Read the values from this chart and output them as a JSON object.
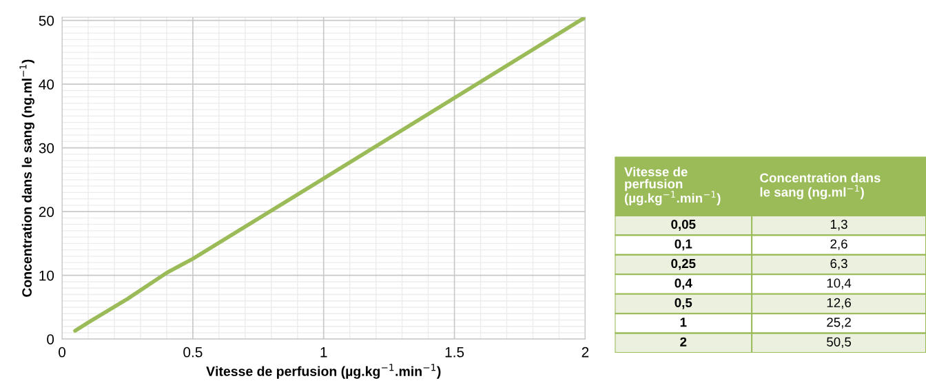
{
  "chart_data": [
    {
      "type": "line",
      "xlabel": "Vitesse de perfusion (µg.kg$^{−1}$.min$^{−1}$)",
      "ylabel": "Concentration dans le sang (ng.ml$^{−1}$)",
      "x": [
        0.05,
        0.1,
        0.25,
        0.4,
        0.5,
        1,
        2
      ],
      "series": [
        {
          "color": "#9bbb59",
          "values": [
            1.3,
            2.6,
            6.3,
            10.4,
            12.6,
            25.2,
            50.5
          ]
        }
      ],
      "xlim": [
        0,
        2
      ],
      "ylim": [
        0,
        50.5
      ],
      "xticks": [
        0,
        {
          "value": 0.1,
          "label": null
        },
        {
          "value": 0.2,
          "label": null
        },
        {
          "value": 0.3,
          "label": null
        },
        {
          "value": 0.4,
          "label": null
        },
        0.5,
        {
          "value": 0.6,
          "label": null
        },
        {
          "value": 0.7,
          "label": null
        },
        {
          "value": 0.8,
          "label": null
        },
        {
          "value": 0.9,
          "label": null
        },
        1,
        {
          "value": 1.1,
          "label": null
        },
        {
          "value": 1.2,
          "label": null
        },
        {
          "value": 1.3,
          "label": null
        },
        {
          "value": 1.4,
          "label": null
        },
        1.5,
        {
          "value": 1.6,
          "label": null
        },
        {
          "value": 1.7,
          "label": null
        },
        {
          "value": 1.8,
          "label": null
        },
        {
          "value": 1.9,
          "label": null
        },
        2
      ],
      "yticks": [
        0,
        {
          "value": 1,
          "label": null
        },
        {
          "value": 2,
          "label": null
        },
        {
          "value": 3,
          "label": null
        },
        {
          "value": 4,
          "label": null
        },
        {
          "value": 5,
          "label": null
        },
        {
          "value": 6,
          "label": null
        },
        {
          "value": 7,
          "label": null
        },
        {
          "value": 8,
          "label": null
        },
        {
          "value": 9,
          "label": null
        },
        10,
        {
          "value": 11,
          "label": null
        },
        {
          "value": 12,
          "label": null
        },
        {
          "value": 13,
          "label": null
        },
        {
          "value": 14,
          "label": null
        },
        {
          "value": 15,
          "label": null
        },
        {
          "value": 16,
          "label": null
        },
        {
          "value": 17,
          "label": null
        },
        {
          "value": 18,
          "label": null
        },
        {
          "value": 19,
          "label": null
        },
        20,
        {
          "value": 21,
          "label": null
        },
        {
          "value": 22,
          "label": null
        },
        {
          "value": 23,
          "label": null
        },
        {
          "value": 24,
          "label": null
        },
        {
          "value": 25,
          "label": null
        },
        {
          "value": 26,
          "label": null
        },
        {
          "value": 27,
          "label": null
        },
        {
          "value": 28,
          "label": null
        },
        {
          "value": 29,
          "label": null
        },
        30,
        {
          "value": 31,
          "label": null
        },
        {
          "value": 32,
          "label": null
        },
        {
          "value": 33,
          "label": null
        },
        {
          "value": 34,
          "label": null
        },
        {
          "value": 35,
          "label": null
        },
        {
          "value": 36,
          "label": null
        },
        {
          "value": 37,
          "label": null
        },
        {
          "value": 38,
          "label": null
        },
        {
          "value": 39,
          "label": null
        },
        40,
        {
          "value": 41,
          "label": null
        },
        {
          "value": 42,
          "label": null
        },
        {
          "value": 43,
          "label": null
        },
        {
          "value": 44,
          "label": null
        },
        {
          "value": 45,
          "label": null
        },
        {
          "value": 46,
          "label": null
        },
        {
          "value": 47,
          "label": null
        },
        {
          "value": 48,
          "label": null
        },
        {
          "value": 49,
          "label": null
        },
        50
      ],
      "grid": true,
      "line_style": "solid",
      "marker": "none"
    },
    {
      "type": "other",
      "annotations": [
        "Vitesse de perfusion (µg.kg$^{−1}$.min$^{−1}$)",
        "Concentration dans le sang (ng.ml$^{−1}$)"
      ],
      "categories": [
        "0,05",
        "0,1",
        "0,25",
        "0,4",
        "0,5",
        "1",
        "2"
      ],
      "value_labels": [
        "1,3",
        "2,6",
        "6,3",
        "10,4",
        "12,6",
        "25,2",
        "50,5"
      ],
      "color": "#9bbb59"
    }
  ]
}
